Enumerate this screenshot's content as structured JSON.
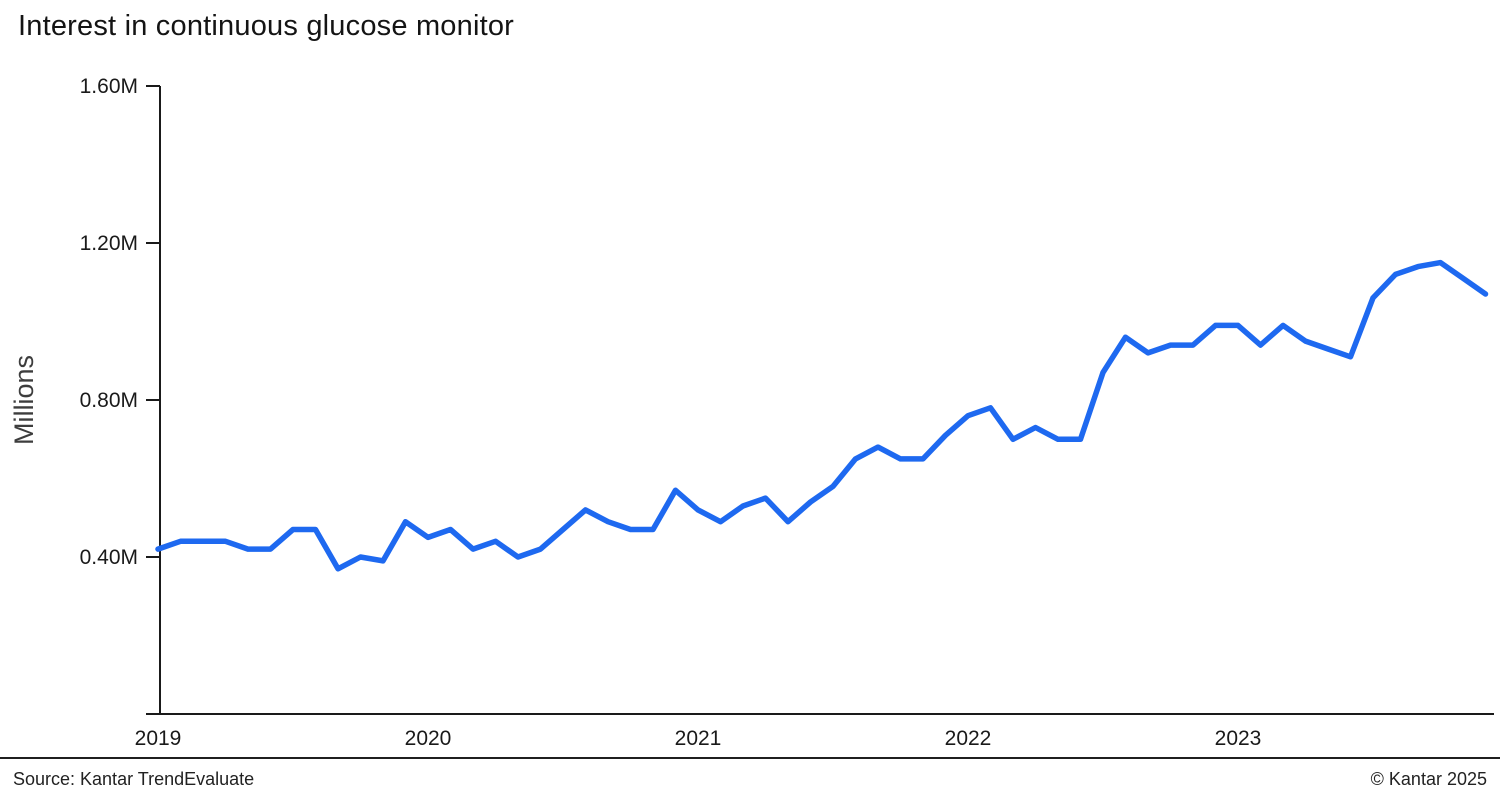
{
  "title": "Interest in continuous glucose monitor",
  "footer": {
    "source": "Source: Kantar TrendEvaluate",
    "copyright": "© Kantar 2025"
  },
  "chart_data": {
    "type": "line",
    "title": "Interest in continuous glucose monitor",
    "xlabel": "",
    "ylabel": "Millions",
    "unit": "M",
    "frequency": "monthly",
    "grid": false,
    "legend": false,
    "line_color": "#1e69f0",
    "axis_color": "#1a1a1a",
    "ylim": [
      0,
      1.6
    ],
    "y_ticks": [
      0.4,
      0.8,
      1.2,
      1.6
    ],
    "y_tick_labels": [
      "0.40M",
      "0.80M",
      "1.20M",
      "1.60M"
    ],
    "x_tick_labels": [
      "2019",
      "2020",
      "2021",
      "2022",
      "2023"
    ],
    "x": [
      "2019-01",
      "2019-02",
      "2019-03",
      "2019-04",
      "2019-05",
      "2019-06",
      "2019-07",
      "2019-08",
      "2019-09",
      "2019-10",
      "2019-11",
      "2019-12",
      "2020-01",
      "2020-02",
      "2020-03",
      "2020-04",
      "2020-05",
      "2020-06",
      "2020-07",
      "2020-08",
      "2020-09",
      "2020-10",
      "2020-11",
      "2020-12",
      "2021-01",
      "2021-02",
      "2021-03",
      "2021-04",
      "2021-05",
      "2021-06",
      "2021-07",
      "2021-08",
      "2021-09",
      "2021-10",
      "2021-11",
      "2021-12",
      "2022-01",
      "2022-02",
      "2022-03",
      "2022-04",
      "2022-05",
      "2022-06",
      "2022-07",
      "2022-08",
      "2022-09",
      "2022-10",
      "2022-11",
      "2022-12",
      "2023-01",
      "2023-02",
      "2023-03",
      "2023-04",
      "2023-05",
      "2023-06",
      "2023-07",
      "2023-08",
      "2023-09",
      "2023-10",
      "2023-11",
      "2023-12"
    ],
    "series": [
      {
        "name": "Interest in continuous glucose monitor",
        "values": [
          0.42,
          0.44,
          0.44,
          0.44,
          0.42,
          0.42,
          0.47,
          0.47,
          0.37,
          0.4,
          0.39,
          0.49,
          0.45,
          0.47,
          0.42,
          0.44,
          0.4,
          0.42,
          0.47,
          0.52,
          0.49,
          0.47,
          0.47,
          0.57,
          0.52,
          0.49,
          0.53,
          0.55,
          0.49,
          0.54,
          0.58,
          0.65,
          0.68,
          0.65,
          0.65,
          0.71,
          0.76,
          0.78,
          0.7,
          0.73,
          0.7,
          0.7,
          0.87,
          0.96,
          0.92,
          0.94,
          0.94,
          0.99,
          0.99,
          0.94,
          0.99,
          0.95,
          0.93,
          0.91,
          1.06,
          1.12,
          1.14,
          1.15,
          1.11,
          1.07
        ]
      }
    ]
  }
}
